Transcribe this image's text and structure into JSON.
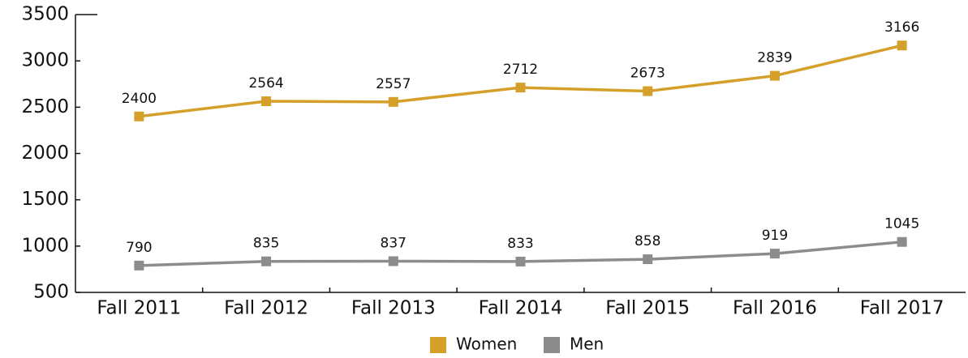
{
  "chart_data": {
    "type": "line",
    "categories": [
      "Fall 2011",
      "Fall 2012",
      "Fall 2013",
      "Fall 2014",
      "Fall 2015",
      "Fall 2016",
      "Fall 2017"
    ],
    "series": [
      {
        "name": "Women",
        "color": "#d4a02a",
        "values": [
          2400,
          2564,
          2557,
          2712,
          2673,
          2839,
          3166
        ]
      },
      {
        "name": "Men",
        "color": "#8c8c8c",
        "values": [
          790,
          835,
          837,
          833,
          858,
          919,
          1045
        ]
      }
    ],
    "ylim": [
      500,
      3500
    ],
    "yticks": [
      500,
      1000,
      1500,
      2000,
      2500,
      3000,
      3500
    ],
    "legend": "bottom"
  }
}
